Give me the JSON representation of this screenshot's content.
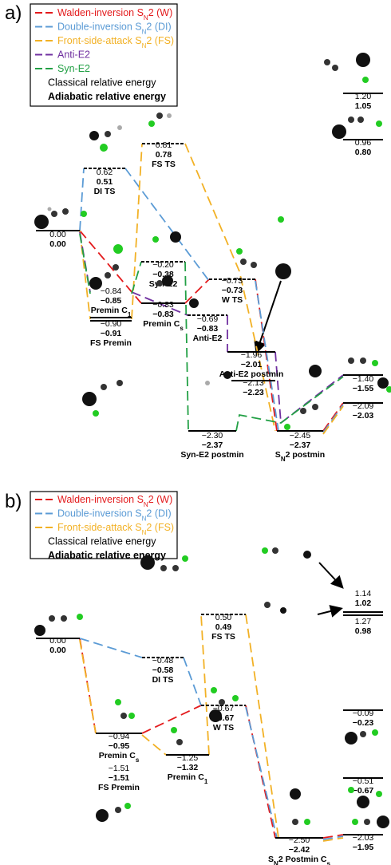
{
  "panels": [
    {
      "label": "a)",
      "legend": [
        {
          "text": "Walden-inversion S",
          "sub": "N",
          "after": "2 (W)"
        },
        {
          "text": "Double-inversion S",
          "sub": "N",
          "after": "2 (DI)"
        },
        {
          "text": "Front-side-attack S",
          "sub": "N",
          "after": "2 (FS)"
        },
        {
          "text": "Anti-E2"
        },
        {
          "text": "Syn-E2"
        },
        {
          "text": "Classical relative energy"
        },
        {
          "text": "Adiabatic relative energy"
        }
      ],
      "levels": [
        {
          "classical": "0.00",
          "adiabatic": "0.00"
        },
        {
          "classical": "0.62",
          "adiabatic": "0.51",
          "name": "DI TS"
        },
        {
          "classical": "0.81",
          "adiabatic": "0.78",
          "name": "FS TS"
        },
        {
          "classical": "−0.20",
          "adiabatic": "−0.38",
          "name": "Syn-E2"
        },
        {
          "classical": "−0.73",
          "adiabatic": "−0.73",
          "name": "W TS"
        },
        {
          "classical": "−0.84",
          "adiabatic": "−0.85",
          "name": {
            "text": "Premin C",
            "sub": "1"
          }
        },
        {
          "classical": "−0.90",
          "adiabatic": "−0.91",
          "name": "FS Premin"
        },
        {
          "classical": "−0.83",
          "adiabatic": "−0.83",
          "name": {
            "text": "Premin C",
            "sub": "s"
          }
        },
        {
          "classical": "−0.69",
          "adiabatic": "−0.83",
          "name": "Anti-E2"
        },
        {
          "classical": "−1.96",
          "adiabatic": "−2.01",
          "name": "Anti-E2 postmin"
        },
        {
          "classical": "−2.13",
          "adiabatic": "−2.23"
        },
        {
          "classical": "−2.30",
          "adiabatic": "−2.37",
          "name": "Syn-E2 postmin"
        },
        {
          "classical": "−2.45",
          "adiabatic": "−2.37",
          "name": {
            "text": "S",
            "sub": "N",
            "after": "2 postmin"
          }
        },
        {
          "classical": "−1.40",
          "adiabatic": "−1.55"
        },
        {
          "classical": "−2.09",
          "adiabatic": "−2.03"
        },
        {
          "classical": "1.20",
          "adiabatic": "1.05"
        },
        {
          "classical": "0.96",
          "adiabatic": "0.80"
        }
      ]
    },
    {
      "label": "b)",
      "legend": [
        {
          "text": "Walden-inversion S",
          "sub": "N",
          "after": "2 (W)"
        },
        {
          "text": "Double-inversion S",
          "sub": "N",
          "after": "2 (DI)"
        },
        {
          "text": "Front-side-attack S",
          "sub": "N",
          "after": "2 (FS)"
        },
        {
          "text": "Classical relative energy"
        },
        {
          "text": "Adiabatic relative energy"
        }
      ],
      "levels": [
        {
          "classical": "0.00",
          "adiabatic": "0.00"
        },
        {
          "classical": "−0.48",
          "adiabatic": "−0.58",
          "name": "DI TS"
        },
        {
          "classical": "0.50",
          "adiabatic": "0.49",
          "name": "FS TS"
        },
        {
          "classical": "−0.67",
          "adiabatic": "−0.67",
          "name": "W TS"
        },
        {
          "classical": "−0.94",
          "adiabatic": "−0.95",
          "name": {
            "text": "Premin C",
            "sub": "s"
          }
        },
        {
          "classical": "−1.51",
          "adiabatic": "−1.51",
          "name": "FS Premin"
        },
        {
          "classical": "−1.25",
          "adiabatic": "−1.32",
          "name": {
            "text": "Premin C",
            "sub": "1"
          }
        },
        {
          "classical": "−2.50",
          "adiabatic": "−2.42",
          "name": {
            "text": "S",
            "sub": "N",
            "after": "2 Postmin C",
            "sub2": "s"
          }
        },
        {
          "classical": "−2.03",
          "adiabatic": "−1.95"
        },
        {
          "classical": "1.14",
          "adiabatic": "1.02"
        },
        {
          "classical": "1.27",
          "adiabatic": "0.98"
        },
        {
          "classical": "−0.09",
          "adiabatic": "−0.23"
        },
        {
          "classical": "−0.51",
          "adiabatic": "−0.67"
        }
      ]
    }
  ]
}
